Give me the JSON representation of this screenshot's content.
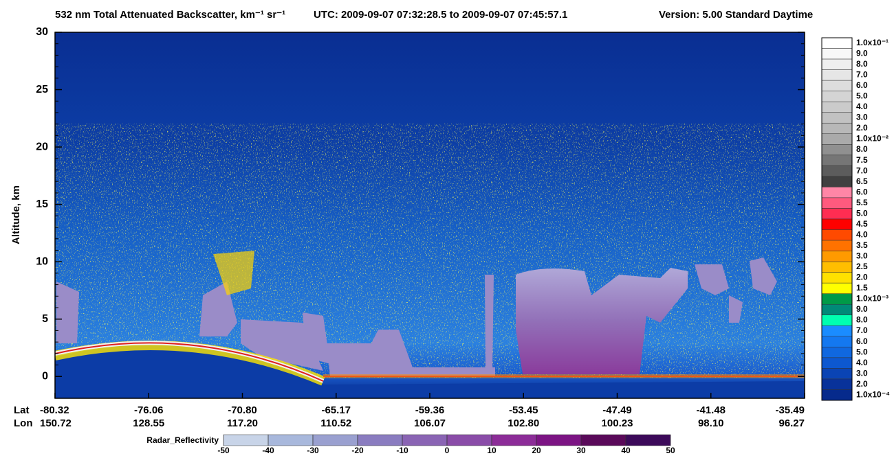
{
  "chart_data": {
    "type": "curtain",
    "title": "532 nm Total Attenuated Backscatter, km⁻¹ sr⁻¹",
    "utc_range": "UTC:  2009-09-07 07:32:28.5  to  2009-09-07 07:45:57.1",
    "version": "Version: 5.00  Standard  Daytime",
    "ylabel": "Altitude, km",
    "ylim": [
      -1.9,
      30
    ],
    "yticks": [
      0,
      5,
      10,
      15,
      20,
      25,
      30
    ],
    "x_row_labels": [
      "Lat",
      "Lon"
    ],
    "lat": [
      "-80.32",
      "-76.06",
      "-70.80",
      "-65.17",
      "-59.36",
      "-53.45",
      "-47.49",
      "-41.48",
      "-35.49"
    ],
    "lon": [
      "150.72",
      "128.55",
      "117.20",
      "110.52",
      "106.07",
      "102.80",
      "100.23",
      "98.10",
      "96.27"
    ],
    "colorbar": {
      "labels": [
        "1.0x10⁻¹",
        "9.0",
        "8.0",
        "7.0",
        "6.0",
        "5.0",
        "4.0",
        "3.0",
        "2.0",
        "1.0x10⁻²",
        "8.0",
        "7.5",
        "7.0",
        "6.5",
        "6.0",
        "5.5",
        "5.0",
        "4.5",
        "4.0",
        "3.5",
        "3.0",
        "2.5",
        "2.0",
        "1.5",
        "1.0x10⁻³",
        "9.0",
        "8.0",
        "7.0",
        "6.0",
        "5.0",
        "4.0",
        "3.0",
        "2.0",
        "1.0x10⁻⁴"
      ],
      "colors": [
        "#ffffff",
        "#f7f7f7",
        "#efefef",
        "#e6e6e6",
        "#dddddd",
        "#d4d4d4",
        "#cbcbcb",
        "#c2c2c2",
        "#b8b8b8",
        "#aaaaaa",
        "#909090",
        "#767676",
        "#5c5c5c",
        "#404040",
        "#ff86a6",
        "#ff5a7e",
        "#ff2d52",
        "#ff0000",
        "#ff4a00",
        "#ff7200",
        "#ff9a00",
        "#ffbe00",
        "#ffe100",
        "#ffff00",
        "#009a48",
        "#008a78",
        "#00ffb0",
        "#1a8cff",
        "#1478f0",
        "#1068e0",
        "#0d58d0",
        "#0a44b4",
        "#08329a",
        "#062a8c"
      ]
    },
    "radar": {
      "label": "Radar_Reflectivity",
      "ticks": [
        -50,
        -40,
        -30,
        -20,
        -10,
        0,
        10,
        20,
        30,
        40,
        50
      ],
      "colors": [
        "#c8d4e8",
        "#a8b8dc",
        "#9aa0d0",
        "#8a7cc0",
        "#8a64b4",
        "#8a4ca8",
        "#8c2c98",
        "#7c1484",
        "#5a0a5a",
        "#3c0a5a"
      ]
    }
  }
}
